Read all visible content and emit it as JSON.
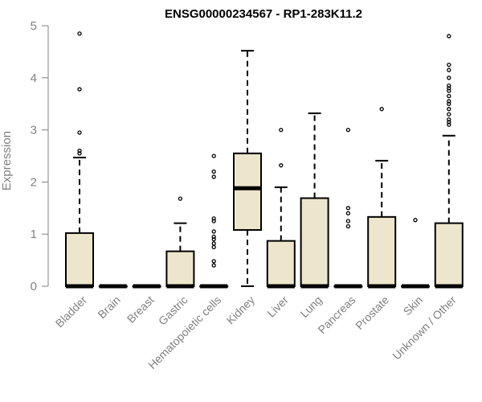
{
  "chart_data": {
    "type": "box",
    "title": "ENSG00000234567 - RP1-283K11.2",
    "xlabel": "",
    "ylabel": "Expression",
    "ylim": [
      0,
      5
    ],
    "yticks": [
      0,
      1,
      2,
      3,
      4,
      5
    ],
    "grid": false,
    "legend": "none",
    "colors": {
      "box_fill": "#ede6cd",
      "stroke": "#000000",
      "axis": "#808080"
    },
    "categories": [
      "Bladder",
      "Brain",
      "Breast",
      "Gastric",
      "Hematopoietic cells",
      "Kidney",
      "Liver",
      "Lung",
      "Pancreas",
      "Prostate",
      "Skin",
      "Unknown / Other"
    ],
    "boxes": [
      {
        "q1": 0,
        "median": 0,
        "q3": 1.02,
        "whisker_low": 0,
        "whisker_high": 2.47,
        "outliers": [
          2.55,
          2.6,
          2.95,
          3.78,
          4.85
        ]
      },
      {
        "q1": 0,
        "median": 0,
        "q3": 0,
        "whisker_low": 0,
        "whisker_high": 0,
        "outliers": []
      },
      {
        "q1": 0,
        "median": 0,
        "q3": 0,
        "whisker_low": 0,
        "whisker_high": 0,
        "outliers": []
      },
      {
        "q1": 0,
        "median": 0,
        "q3": 0.67,
        "whisker_low": 0,
        "whisker_high": 1.21,
        "outliers": [
          1.68
        ]
      },
      {
        "q1": 0,
        "median": 0,
        "q3": 0,
        "whisker_low": 0,
        "whisker_high": 0,
        "outliers": [
          0.4,
          0.48,
          0.75,
          0.82,
          0.9,
          0.95,
          1.05,
          1.25,
          1.3,
          2.1,
          2.2,
          2.5
        ]
      },
      {
        "q1": 1.08,
        "median": 1.88,
        "q3": 2.55,
        "whisker_low": 0,
        "whisker_high": 4.52,
        "outliers": []
      },
      {
        "q1": 0,
        "median": 0,
        "q3": 0.87,
        "whisker_low": 0,
        "whisker_high": 1.9,
        "outliers": [
          2.32,
          3.0
        ]
      },
      {
        "q1": 0,
        "median": 0,
        "q3": 1.69,
        "whisker_low": 0,
        "whisker_high": 3.32,
        "outliers": []
      },
      {
        "q1": 0,
        "median": 0,
        "q3": 0,
        "whisker_low": 0,
        "whisker_high": 0,
        "outliers": [
          1.15,
          1.25,
          1.4,
          1.5,
          3.0
        ]
      },
      {
        "q1": 0,
        "median": 0,
        "q3": 1.33,
        "whisker_low": 0,
        "whisker_high": 2.41,
        "outliers": [
          3.4
        ]
      },
      {
        "q1": 0,
        "median": 0,
        "q3": 0,
        "whisker_low": 0,
        "whisker_high": 0,
        "outliers": [
          1.27
        ]
      },
      {
        "q1": 0,
        "median": 0,
        "q3": 1.21,
        "whisker_low": 0,
        "whisker_high": 2.89,
        "outliers": [
          3.1,
          3.15,
          3.2,
          3.3,
          3.4,
          3.5,
          3.55,
          3.65,
          3.75,
          3.8,
          3.85,
          4.0,
          4.15,
          4.25,
          4.8
        ]
      }
    ]
  }
}
